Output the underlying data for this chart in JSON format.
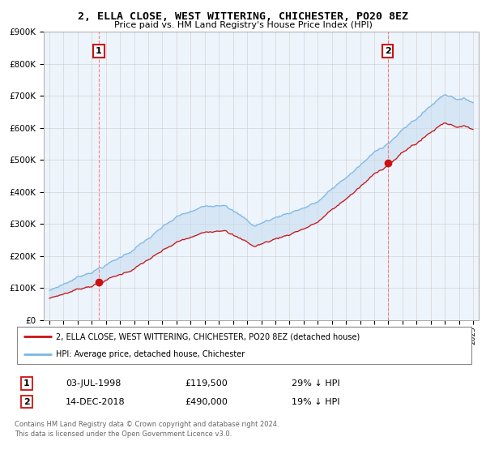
{
  "title": "2, ELLA CLOSE, WEST WITTERING, CHICHESTER, PO20 8EZ",
  "subtitle": "Price paid vs. HM Land Registry's House Price Index (HPI)",
  "ylim": [
    0,
    900000
  ],
  "yticks": [
    0,
    100000,
    200000,
    300000,
    400000,
    500000,
    600000,
    700000,
    800000,
    900000
  ],
  "hpi_color": "#7ab8e8",
  "price_color": "#cc1111",
  "sale1_year": 1998.5,
  "sale1_price": 119500,
  "sale2_year": 2018.95,
  "sale2_price": 490000,
  "annotation1": {
    "label": "1",
    "date_str": "03-JUL-1998",
    "price": 119500,
    "pct": "29% ↓ HPI"
  },
  "annotation2": {
    "label": "2",
    "date_str": "14-DEC-2018",
    "price": 490000,
    "pct": "19% ↓ HPI"
  },
  "legend_line1": "2, ELLA CLOSE, WEST WITTERING, CHICHESTER, PO20 8EZ (detached house)",
  "legend_line2": "HPI: Average price, detached house, Chichester",
  "footer": "Contains HM Land Registry data © Crown copyright and database right 2024.\nThis data is licensed under the Open Government Licence v3.0.",
  "background_color": "#ffffff",
  "fill_color": "#ddeeff",
  "grid_color": "#cccccc"
}
